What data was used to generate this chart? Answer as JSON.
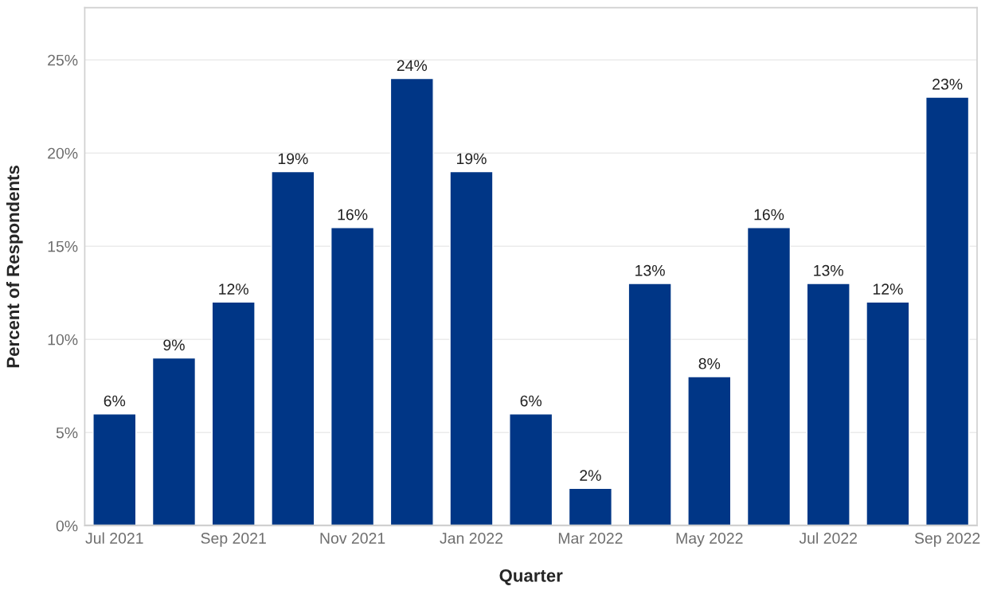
{
  "chart_data": {
    "type": "bar",
    "xlabel": "Quarter",
    "ylabel": "Percent of Respondents",
    "categories": [
      "Jul 2021",
      null,
      "Sep 2021",
      null,
      "Nov 2021",
      null,
      "Jan 2022",
      null,
      "Mar 2022",
      null,
      "May 2022",
      null,
      "Jul 2022",
      null,
      "Sep 2022"
    ],
    "values": [
      6,
      9,
      12,
      19,
      16,
      24,
      19,
      6,
      2,
      13,
      8,
      16,
      13,
      12,
      23
    ],
    "value_labels": [
      "6%",
      "9%",
      "12%",
      "19%",
      "16%",
      "24%",
      "19%",
      "6%",
      "2%",
      "13%",
      "8%",
      "16%",
      "13%",
      "12%",
      "23%"
    ],
    "color": "#003686",
    "ylim": [
      0,
      27.8
    ],
    "yticks": [
      {
        "value": 0,
        "label": "0%"
      },
      {
        "value": 5,
        "label": "5%"
      },
      {
        "value": 10,
        "label": "10%"
      },
      {
        "value": 15,
        "label": "15%"
      },
      {
        "value": 20,
        "label": "20%"
      },
      {
        "value": 25,
        "label": "25%"
      }
    ],
    "grid": "y"
  }
}
